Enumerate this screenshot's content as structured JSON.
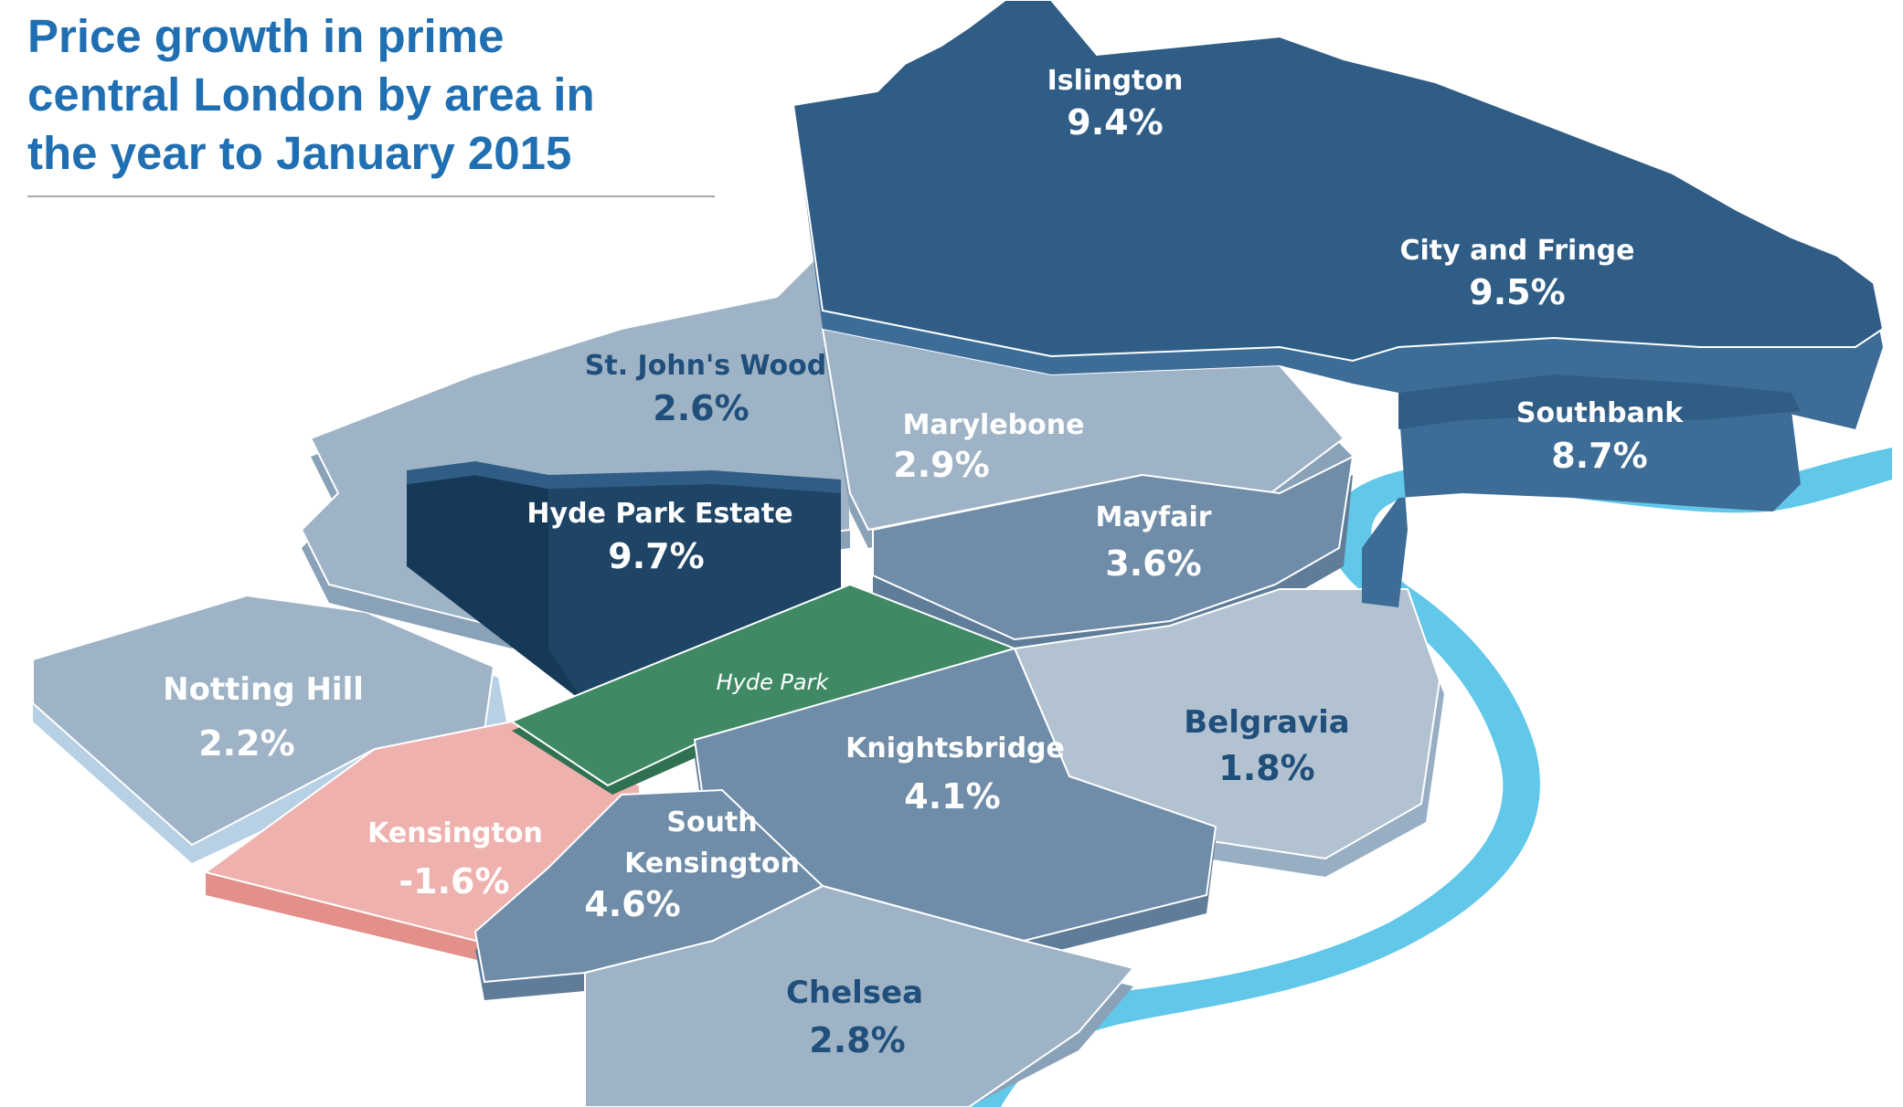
{
  "title": {
    "line1": "Price growth in prime",
    "line2": "central London by area in",
    "line3": "the year to January 2015"
  },
  "colors": {
    "title": "#1f6fb2",
    "high_growth": "#2f5d86",
    "highest_growth": "#1e4466",
    "medium_growth": "#6f8ca8",
    "low_growth": "#9fb3c6",
    "negative_growth": "#efb1ad",
    "park": "#3f8a64",
    "river": "#61c8ea",
    "dark_label": "#1f4f7a",
    "light_label": "#ffffff"
  },
  "areas": {
    "islington": {
      "name": "Islington",
      "value": "9.4%"
    },
    "city": {
      "name": "City and Fringe",
      "value": "9.5%"
    },
    "southbank": {
      "name": "Southbank",
      "value": "8.7%"
    },
    "stjohns": {
      "name": "St. John's Wood",
      "value": "2.6%"
    },
    "marylebone": {
      "name": "Marylebone",
      "value": "2.9%"
    },
    "hydeparkestate": {
      "name": "Hyde Park Estate",
      "value": "9.7%"
    },
    "mayfair": {
      "name": "Mayfair",
      "value": "3.6%"
    },
    "nottinghill": {
      "name": "Notting Hill",
      "value": "2.2%"
    },
    "belgravia": {
      "name": "Belgravia",
      "value": "1.8%"
    },
    "knightsbridge": {
      "name": "Knightsbridge",
      "value": "4.1%"
    },
    "kensington": {
      "name": "Kensington",
      "value": "-1.6%"
    },
    "southkensington": {
      "name_line1": "South",
      "name_line2": "Kensington",
      "value": "4.6%"
    },
    "chelsea": {
      "name": "Chelsea",
      "value": "2.8%"
    }
  },
  "park": {
    "name": "Hyde Park"
  }
}
